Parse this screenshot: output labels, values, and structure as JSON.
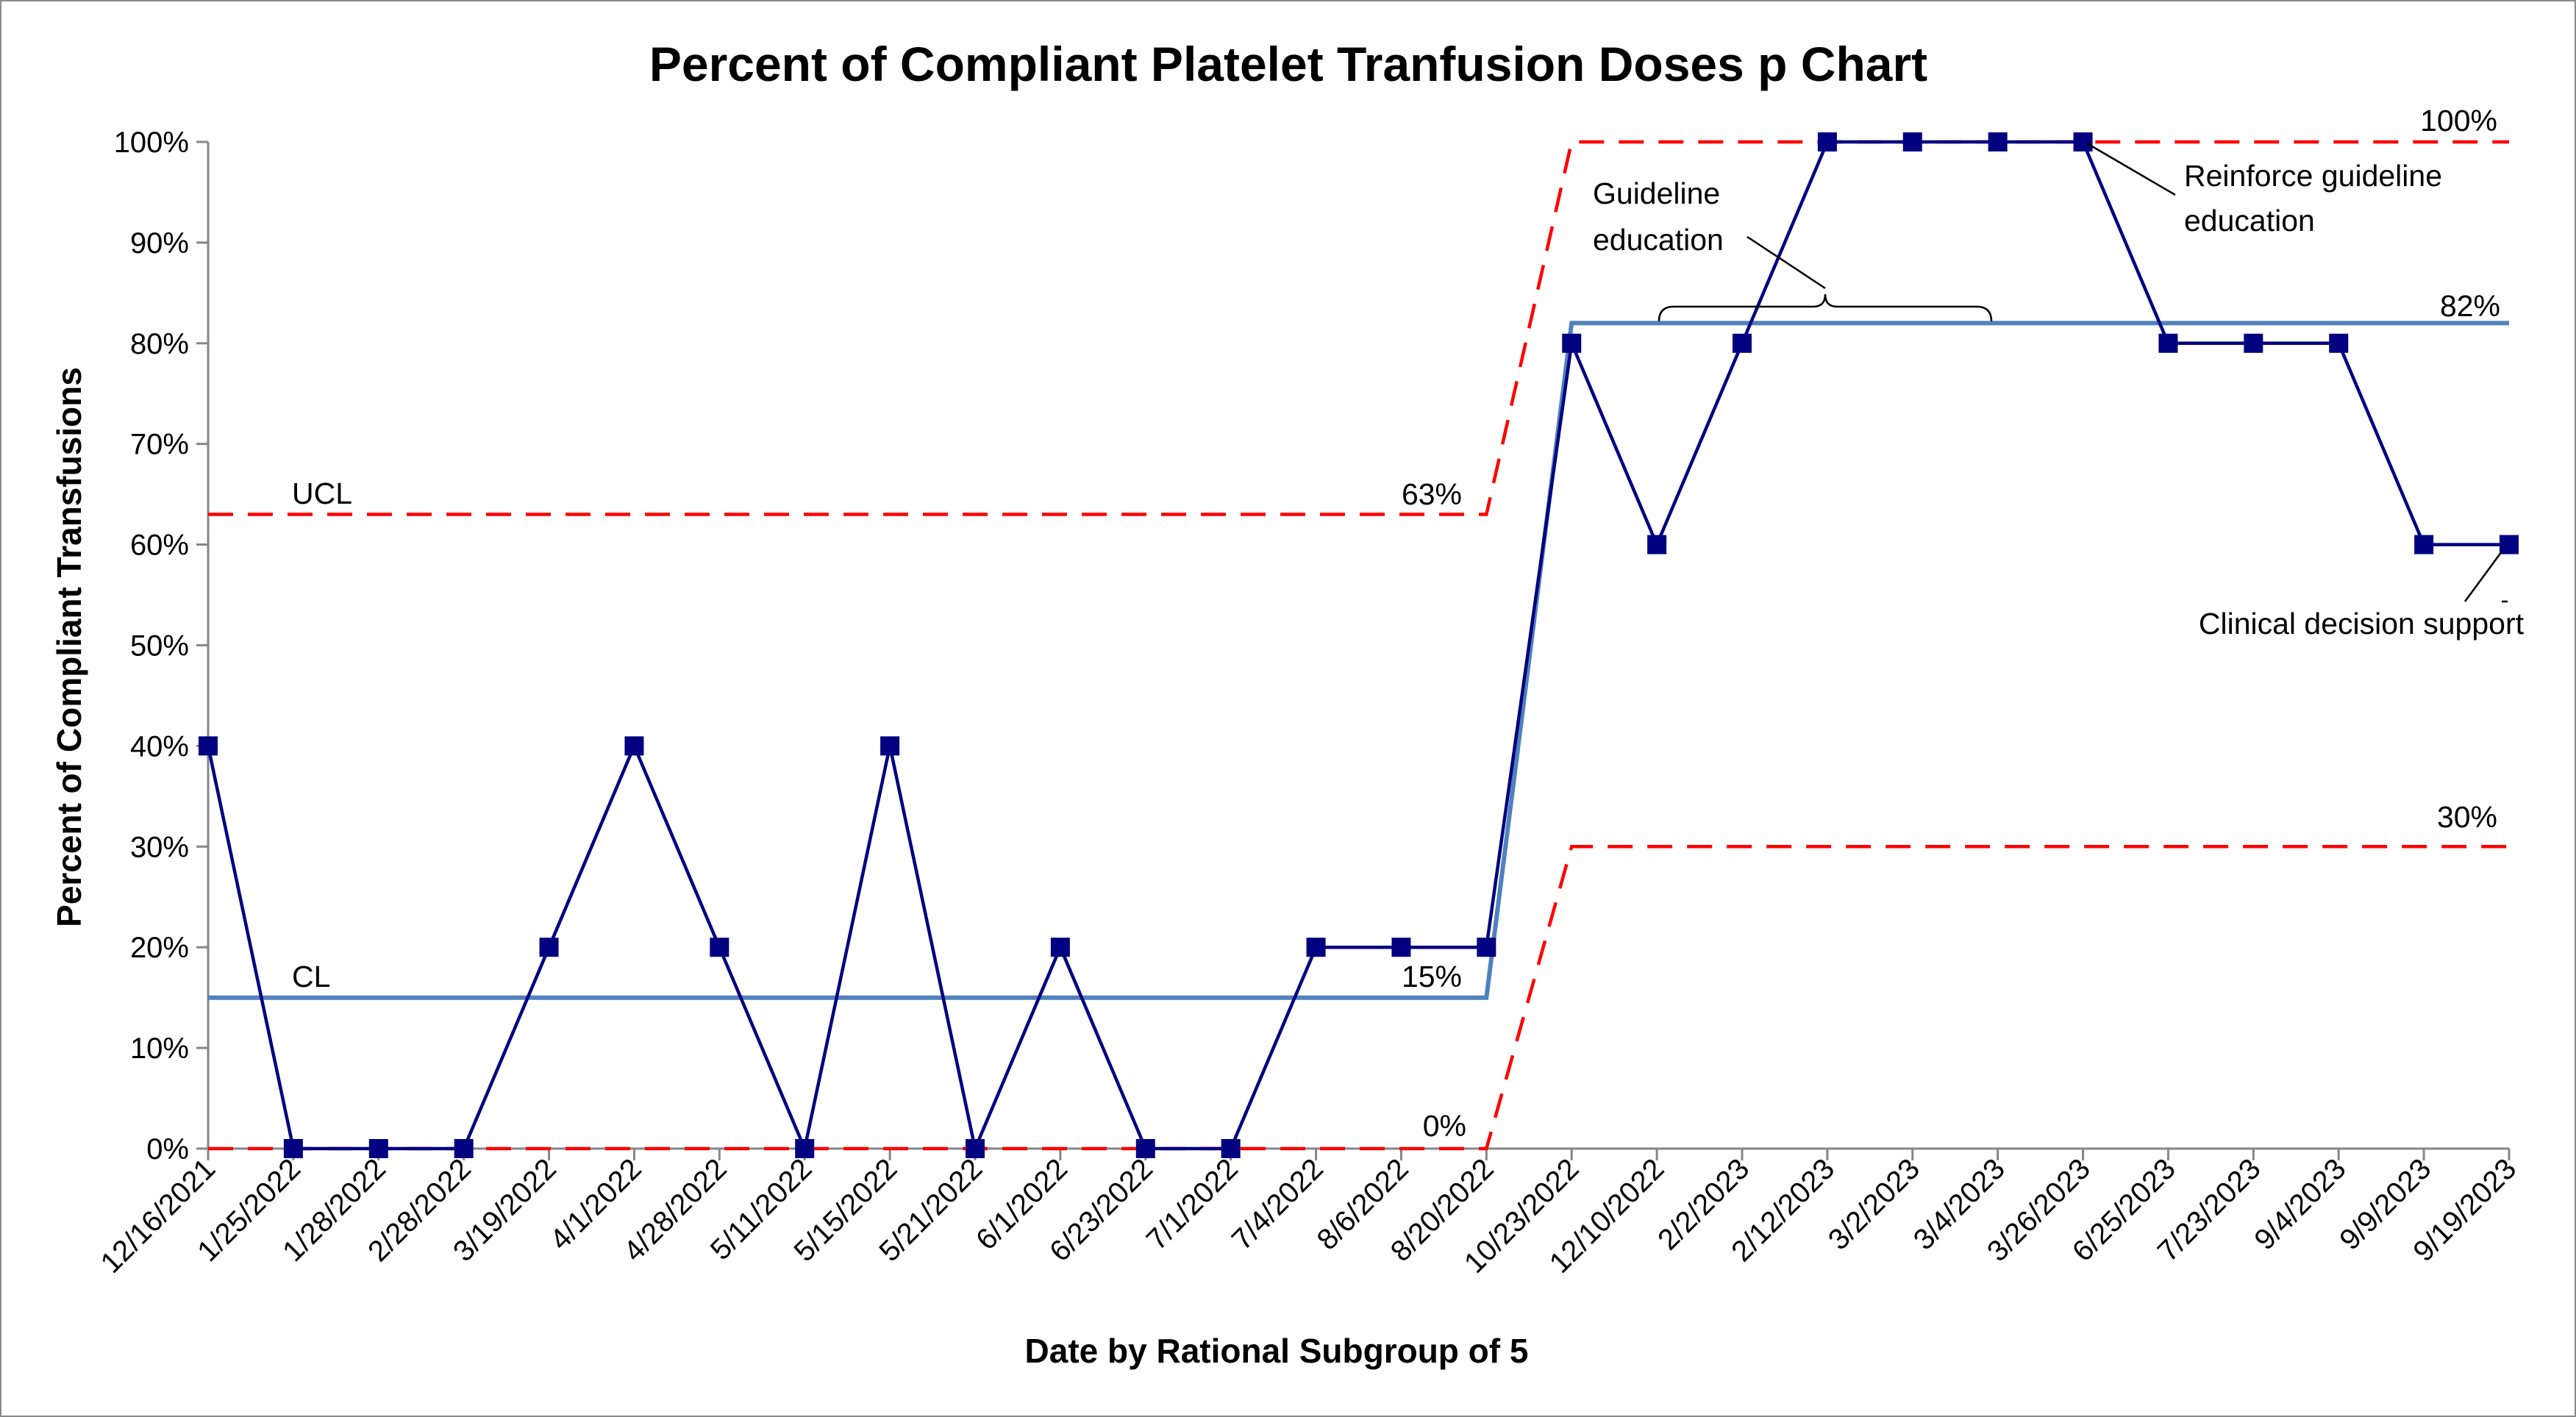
{
  "chart_data": {
    "type": "line",
    "title": "Percent of Compliant Platelet Tranfusion Doses p Chart",
    "xlabel": "Date by Rational Subgroup of 5",
    "ylabel": "Percent of Compliant Transfusions",
    "ylim": [
      0,
      100
    ],
    "y_ticks": [
      "0%",
      "10%",
      "20%",
      "30%",
      "40%",
      "50%",
      "60%",
      "70%",
      "80%",
      "90%",
      "100%"
    ],
    "grid": false,
    "categories": [
      "12/16/2021",
      "1/25/2022",
      "1/28/2022",
      "2/28/2022",
      "3/19/2022",
      "4/1/2022",
      "4/28/2022",
      "5/11/2022",
      "5/15/2022",
      "5/21/2022",
      "6/1/2022",
      "6/23/2022",
      "7/1/2022",
      "7/4/2022",
      "8/6/2022",
      "8/20/2022",
      "10/23/2022",
      "12/10/2022",
      "2/2/2023",
      "2/12/2023",
      "3/2/2023",
      "3/4/2023",
      "3/26/2023",
      "6/25/2023",
      "7/23/2023",
      "9/4/2023",
      "9/9/2023",
      "9/19/2023"
    ],
    "series": [
      {
        "name": "",
        "values": [
          40,
          0,
          0,
          0,
          20,
          40,
          20,
          0,
          40,
          0,
          20,
          0,
          0,
          20,
          20,
          20,
          80,
          60,
          80,
          100,
          100,
          100,
          100,
          80,
          80,
          80,
          60,
          60
        ]
      }
    ],
    "limits": {
      "ucl": [
        63,
        63,
        63,
        63,
        63,
        63,
        63,
        63,
        63,
        63,
        63,
        63,
        63,
        63,
        63,
        63,
        100,
        100,
        100,
        100,
        100,
        100,
        100,
        100,
        100,
        100,
        100,
        100
      ],
      "cl": [
        15,
        15,
        15,
        15,
        15,
        15,
        15,
        15,
        15,
        15,
        15,
        15,
        15,
        15,
        15,
        15,
        82,
        82,
        82,
        82,
        82,
        82,
        82,
        82,
        82,
        82,
        82,
        82
      ],
      "lcl": [
        0,
        0,
        0,
        0,
        0,
        0,
        0,
        0,
        0,
        0,
        0,
        0,
        0,
        0,
        0,
        0,
        30,
        30,
        30,
        30,
        30,
        30,
        30,
        30,
        30,
        30,
        30,
        30
      ]
    },
    "limit_labels": {
      "ucl": "UCL",
      "cl": "CL",
      "ucl_phase1": "63%",
      "cl_phase1": "15%",
      "lcl_phase1": "0%",
      "ucl_phase2": "100%",
      "cl_phase2": "82%",
      "lcl_phase2": "30%"
    },
    "annotations": {
      "guideline_line1": "Guideline",
      "guideline_line2": "education",
      "reinforce_line1": "Reinforce guideline",
      "reinforce_line2": "education",
      "cds": "Clinical decision support"
    },
    "colors": {
      "series": "#000080",
      "limit": "#ff0000",
      "center": "#4f81bd"
    }
  }
}
